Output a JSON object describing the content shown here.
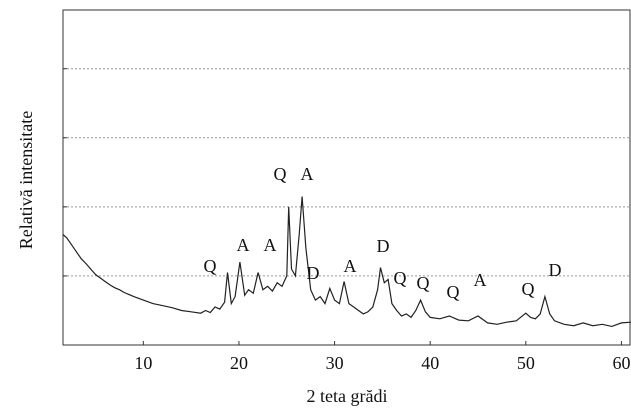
{
  "chart_data": {
    "type": "line",
    "x_label": "2 teta grădi",
    "y_label": "Relativă intensitate",
    "xlim": [
      1.6,
      61
    ],
    "xticks": [
      10,
      20,
      30,
      40,
      50,
      60
    ],
    "ylim": [
      0,
      4.85
    ],
    "yticks": [
      1,
      2,
      3,
      4
    ],
    "grid": true,
    "annotations": [
      "Q",
      "A",
      "A",
      "Q",
      "A",
      "D",
      "A",
      "D",
      "Q",
      "Q",
      "Q",
      "A",
      "Q",
      "D"
    ],
    "x": [
      1.6,
      2,
      2.5,
      3,
      3.5,
      4,
      4.5,
      5,
      5.5,
      6,
      6.5,
      7,
      7.5,
      8,
      9,
      10,
      11,
      12,
      13,
      14,
      15,
      16,
      16.5,
      17,
      17.5,
      18,
      18.5,
      18.8,
      19.2,
      19.6,
      20.1,
      20.6,
      21,
      21.5,
      22,
      22.5,
      23,
      23.5,
      24,
      24.5,
      25,
      25.2,
      25.5,
      25.9,
      26.3,
      26.6,
      27,
      27.5,
      28,
      28.5,
      29,
      29.5,
      30,
      30.5,
      31,
      31.5,
      32,
      32.5,
      33,
      33.5,
      34,
      34.5,
      34.8,
      35.2,
      35.6,
      36,
      36.5,
      37,
      37.5,
      38,
      38.5,
      39,
      39.5,
      40,
      41,
      42,
      43,
      44,
      45,
      46,
      47,
      48,
      49,
      50,
      50.5,
      51,
      51.5,
      52,
      52.5,
      53,
      54,
      55,
      56,
      57,
      58,
      59,
      60,
      61
    ],
    "series": [
      {
        "color": "#222222",
        "values": [
          1.6,
          1.55,
          1.45,
          1.35,
          1.25,
          1.18,
          1.1,
          1.02,
          0.97,
          0.92,
          0.87,
          0.83,
          0.8,
          0.76,
          0.7,
          0.65,
          0.6,
          0.57,
          0.54,
          0.5,
          0.48,
          0.46,
          0.5,
          0.47,
          0.55,
          0.52,
          0.62,
          1.05,
          0.6,
          0.7,
          1.2,
          0.72,
          0.8,
          0.75,
          1.05,
          0.8,
          0.85,
          0.78,
          0.9,
          0.85,
          1.0,
          2.0,
          1.1,
          1.0,
          1.6,
          2.15,
          1.4,
          0.8,
          0.65,
          0.7,
          0.6,
          0.82,
          0.65,
          0.6,
          0.92,
          0.6,
          0.55,
          0.5,
          0.45,
          0.48,
          0.55,
          0.8,
          1.12,
          0.9,
          0.95,
          0.6,
          0.5,
          0.42,
          0.45,
          0.4,
          0.5,
          0.65,
          0.48,
          0.4,
          0.38,
          0.42,
          0.36,
          0.35,
          0.42,
          0.32,
          0.3,
          0.33,
          0.35,
          0.46,
          0.4,
          0.38,
          0.45,
          0.7,
          0.45,
          0.35,
          0.3,
          0.28,
          0.32,
          0.28,
          0.3,
          0.27,
          0.32,
          0.33
        ]
      }
    ]
  }
}
